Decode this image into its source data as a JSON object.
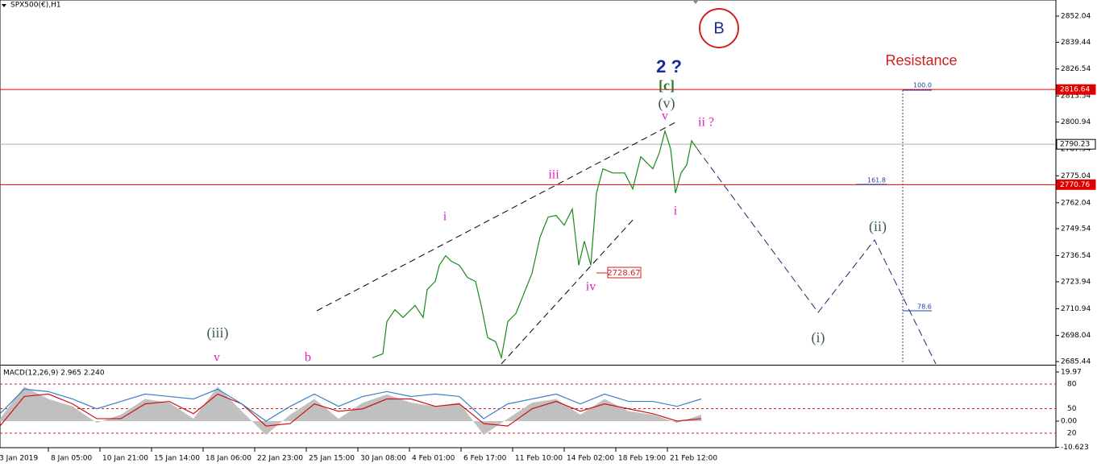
{
  "chart_data": [
    {
      "type": "line",
      "title": "SPX500(€),H1",
      "xlim": [
        -20,
        1290
      ],
      "ylim": [
        2684.3,
        2859.8
      ],
      "yticks": [
        2852.04,
        2839.44,
        2826.54,
        2813.54,
        2800.94,
        2787.94,
        2775.04,
        2762.04,
        2749.54,
        2736.54,
        2723.94,
        2710.94,
        2698.04,
        2685.44
      ],
      "series": [
        {
          "color": "#1a8a1a",
          "x": [
            442,
            455,
            460,
            470,
            480,
            495,
            505,
            510,
            520,
            525,
            533,
            540,
            550,
            560,
            570,
            577,
            585,
            595,
            602,
            610,
            620,
            628,
            640,
            650,
            660,
            670,
            680,
            690,
            698,
            705,
            713,
            720,
            728,
            740,
            755,
            765,
            775,
            790,
            798,
            805,
            812,
            818,
            825,
            832,
            838,
            845
          ],
          "values": [
            2687.3,
            2689.2,
            2704.7,
            2710.5,
            2706.7,
            2712.5,
            2706.7,
            2720.2,
            2724.1,
            2731.9,
            2736.5,
            2733.8,
            2731.9,
            2726.0,
            2724.1,
            2712.5,
            2697.0,
            2695.0,
            2687.3,
            2704.7,
            2708.6,
            2716.3,
            2728.0,
            2745.4,
            2755.1,
            2755.9,
            2751.2,
            2759.0,
            2731.9,
            2743.5,
            2731.9,
            2766.7,
            2778.4,
            2776.4,
            2776.4,
            2768.7,
            2784.2,
            2778.4,
            2786.1,
            2796.6,
            2788.1,
            2766.7,
            2776.4,
            2780.3,
            2791.9,
            2788.1
          ]
        }
      ],
      "levels": [
        {
          "value": 2816.64,
          "color": "#e00000"
        },
        {
          "value": 2790.23,
          "color": "#aaaaaa"
        },
        {
          "value": 2770.76,
          "color": "#e00000"
        }
      ],
      "fib_labels": [
        "100.0",
        "161.8",
        "78.6"
      ],
      "annotations": [
        "B",
        "2 ?",
        "[c]",
        "(v)",
        "v",
        "ii ?",
        "iii",
        "i",
        "i",
        "iv",
        "2728.67",
        "(iii)",
        "v",
        "b",
        "(ii)",
        "(i)",
        "Resistance"
      ]
    },
    {
      "type": "macd",
      "title": "MACD(12,26,9) 2.965 2.240",
      "xlim": [
        -20,
        1290
      ],
      "ylim": [
        -10.8,
        22.26
      ],
      "yticks": [
        19.97,
        {
          "value": 0,
          "label": "0.00"
        },
        -10.623
      ],
      "y2lim": [
        2.3,
        101.6
      ],
      "y2ticks": [
        80,
        50,
        20
      ],
      "xticks": [
        {
          "value": -24,
          "label": "3 Jan 2019"
        },
        {
          "value": 40,
          "label": "8 Jan 05:00"
        },
        {
          "value": 104,
          "label": "10 Jan 21:00"
        },
        {
          "value": 168,
          "label": "15 Jan 14:00"
        },
        {
          "value": 232,
          "label": "18 Jan 06:00"
        },
        {
          "value": 296,
          "label": "22 Jan 23:00"
        },
        {
          "value": 360,
          "label": "25 Jan 15:00"
        },
        {
          "value": 424,
          "label": "30 Jan 08:00"
        },
        {
          "value": 488,
          "label": "4 Feb 01:00"
        },
        {
          "value": 552,
          "label": "6 Feb 17:00"
        },
        {
          "value": 616,
          "label": "11 Feb 10:00"
        },
        {
          "value": 680,
          "label": "14 Feb 02:00"
        },
        {
          "value": 744,
          "label": "18 Feb 19:00"
        },
        {
          "value": 808,
          "label": "21 Feb 12:00"
        }
      ],
      "x": [
        -20,
        10,
        40,
        70,
        100,
        130,
        160,
        190,
        220,
        250,
        280,
        310,
        340,
        370,
        400,
        430,
        460,
        490,
        520,
        550,
        580,
        610,
        640,
        670,
        700,
        730,
        760,
        790,
        820,
        850
      ],
      "series": [
        {
          "style": "area",
          "color": "#c0c0c0",
          "values": [
            1,
            14,
            9,
            6,
            -0.7,
            2.6,
            9,
            7.5,
            1,
            14,
            4,
            -5.6,
            2.6,
            9,
            1,
            7.5,
            10.8,
            7.5,
            6,
            7.5,
            -5.6,
            1,
            7.5,
            9,
            2.6,
            9,
            4,
            2.6,
            -0.7,
            2.6
          ]
        },
        {
          "style": "line",
          "color": "#d01010",
          "values": [
            -2,
            10,
            11,
            7,
            1,
            1,
            7,
            8,
            3,
            11,
            7,
            -2,
            -1,
            7,
            4,
            5,
            9,
            9,
            6,
            7,
            -1,
            -2,
            5,
            8,
            4,
            7,
            5,
            3,
            0,
            1
          ]
        },
        {
          "style": "line",
          "color": "#3a7fc8",
          "values": [
            3,
            13,
            12,
            9,
            5,
            8,
            11,
            10,
            9,
            13,
            7,
            0,
            6,
            11,
            6,
            10,
            12,
            10,
            11,
            10,
            1,
            7,
            9,
            11,
            7,
            11,
            8,
            8,
            6,
            9
          ]
        }
      ]
    }
  ]
}
